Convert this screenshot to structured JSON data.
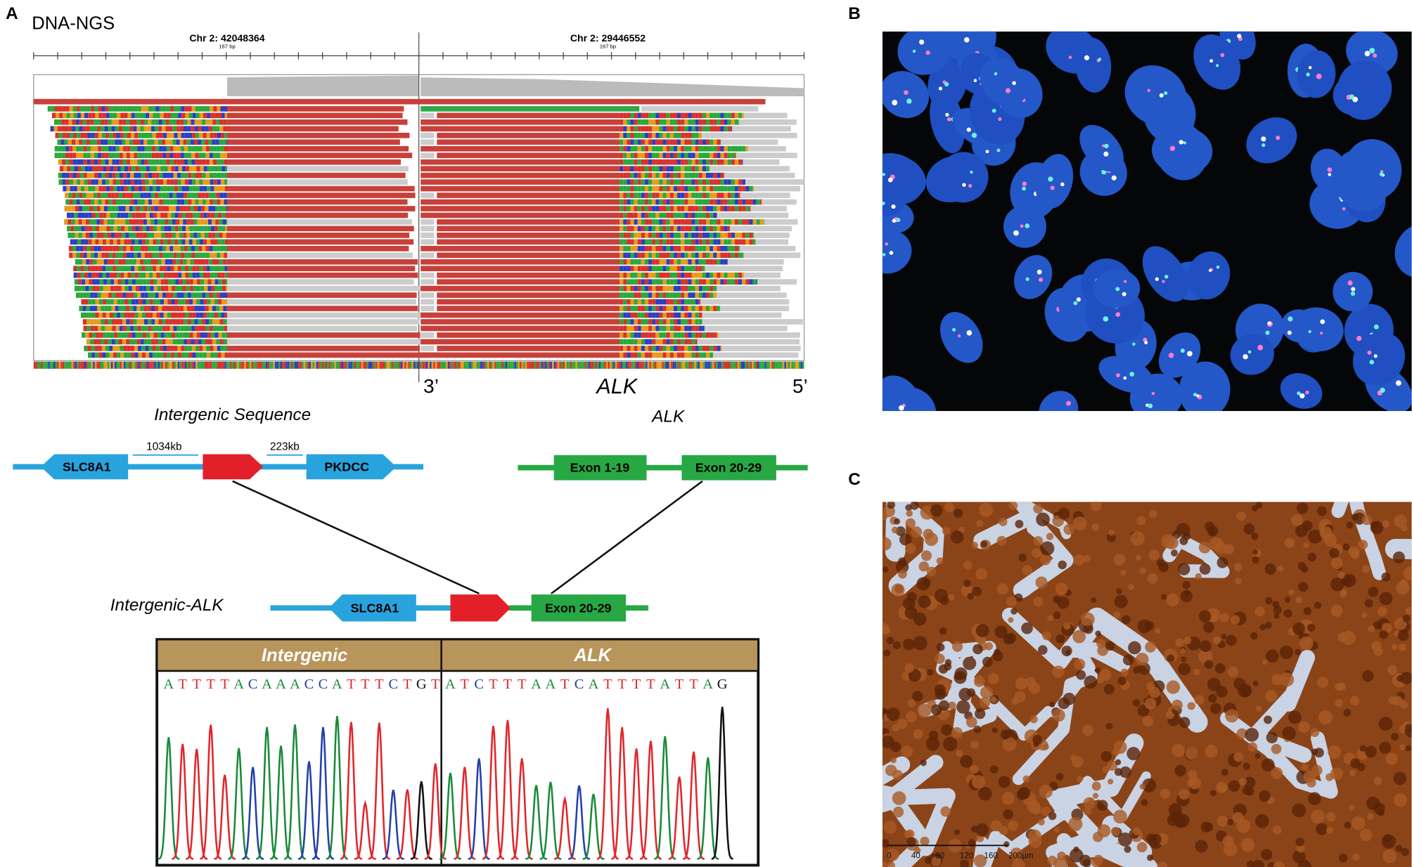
{
  "panels": {
    "a": "A",
    "b": "B",
    "c": "C"
  },
  "ngs": {
    "title": "DNA-NGS",
    "left": {
      "locus": "Chr 2: 42048364",
      "span": "167 bp"
    },
    "right": {
      "locus": "Chr 2: 29446552",
      "span": "167 bp"
    },
    "orientation": {
      "three": "3’",
      "gene": "ALK",
      "five": "5’"
    }
  },
  "genes": {
    "title": "Intergenic Sequence",
    "alk_title": "ALK",
    "slc8a1": "SLC8A1",
    "dist1": "1034kb",
    "dist2": "223kb",
    "pkdcc": "PKDCC",
    "exon1": "Exon 1-19",
    "exon2": "Exon 20-29"
  },
  "fusion": {
    "label": "Intergenic-ALK",
    "slc8a1": "SLC8A1",
    "exon": "Exon 20-29"
  },
  "sanger": {
    "left": {
      "title": "Intergenic",
      "bases": "ATTTTACAAACCATTTCTGT"
    },
    "right": {
      "title": "ALK",
      "bases": "ATCTTTAATCATTTTATTAG"
    }
  },
  "scale_bar": [
    "0",
    "40",
    "80",
    "120",
    "160",
    "200µm"
  ]
}
